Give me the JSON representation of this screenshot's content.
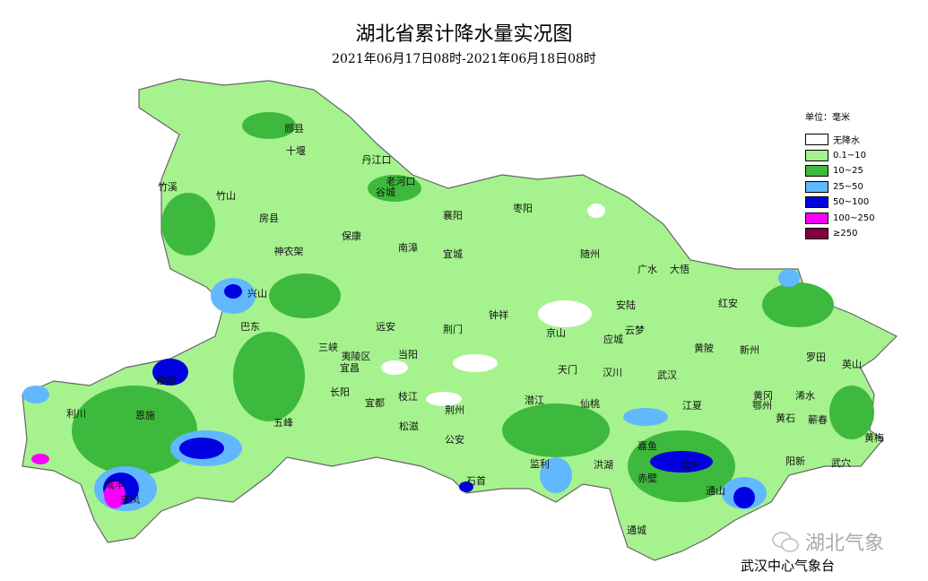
{
  "title": "湖北省累计降水量实况图",
  "subtitle": "2021年06月17日08时-2021年06月18日08时",
  "legend": {
    "unit": "单位：毫米",
    "items": [
      {
        "label": "无降水",
        "color": "#ffffff"
      },
      {
        "label": "0.1~10",
        "color": "#a6f28f"
      },
      {
        "label": "10~25",
        "color": "#3dba3d"
      },
      {
        "label": "25~50",
        "color": "#61b8ff"
      },
      {
        "label": "50~100",
        "color": "#0000e1"
      },
      {
        "label": "100~250",
        "color": "#fa00fa"
      },
      {
        "label": "≥250",
        "color": "#800040"
      }
    ]
  },
  "cities": [
    "郧县",
    "十堰",
    "丹江口",
    "老河口",
    "竹溪",
    "竹山",
    "谷城",
    "房县",
    "襄阳",
    "枣阳",
    "保康",
    "南漳",
    "神农架",
    "宜城",
    "随州",
    "广水",
    "大悟",
    "兴山",
    "红安",
    "钟祥",
    "安陆",
    "巴东",
    "远安",
    "荆门",
    "京山",
    "云梦",
    "应城",
    "黄陂",
    "新州",
    "三峡",
    "夷陵区",
    "当阳",
    "宜昌",
    "天门",
    "汉川",
    "武汉",
    "罗田",
    "英山",
    "建始",
    "长阳",
    "宜都",
    "枝江",
    "荆州",
    "潜江",
    "仙桃",
    "黄冈",
    "鄂州",
    "浠水",
    "江夏",
    "利川",
    "恩施",
    "五峰",
    "松滋",
    "黄石",
    "蕲春",
    "公安",
    "嘉鱼",
    "黄梅",
    "阳新",
    "武穴",
    "监利",
    "洪湖",
    "咸宁",
    "石首",
    "赤壁",
    "咸丰",
    "通山",
    "来凤",
    "通城"
  ],
  "watermark": "湖北气象",
  "credit": "武汉中心气象台"
}
